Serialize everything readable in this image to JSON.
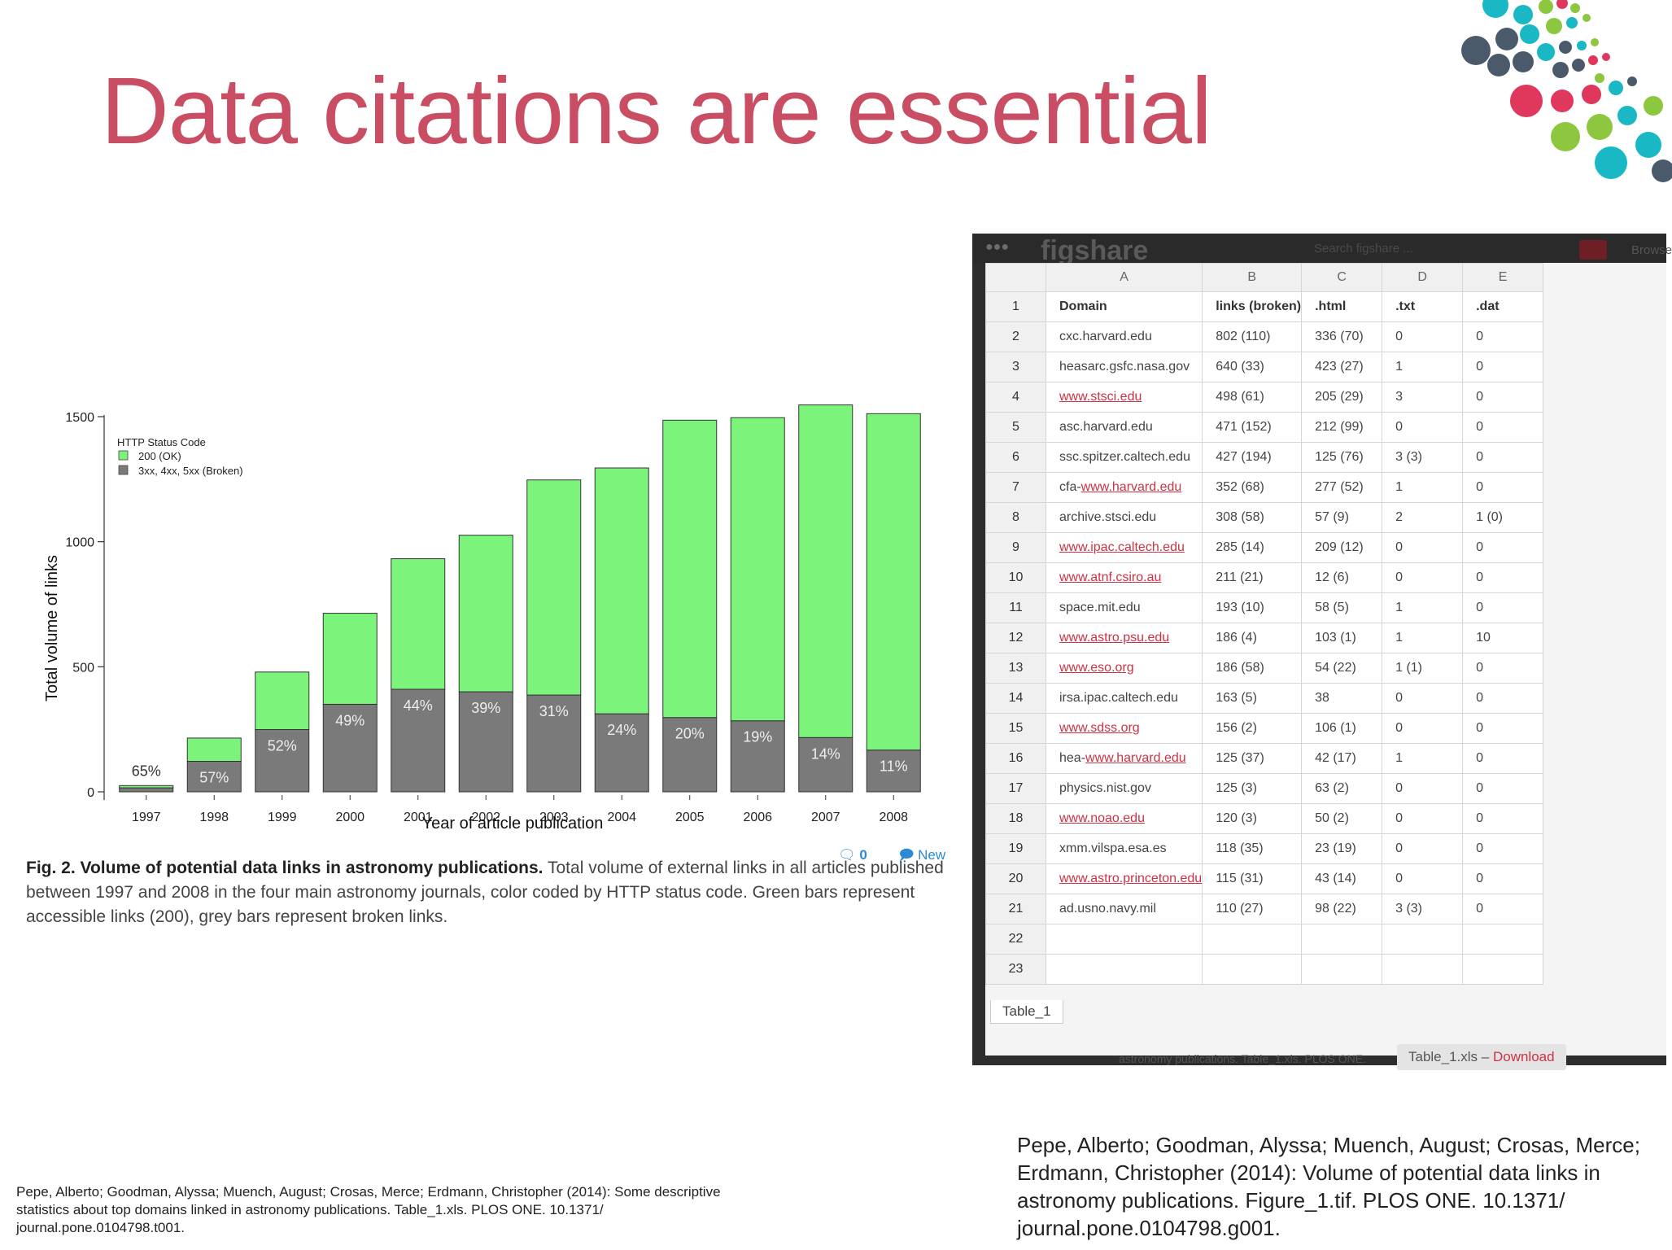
{
  "slide": {
    "title": "Data citations are essential"
  },
  "figure": {
    "links": {
      "comments": "0",
      "new": "New"
    },
    "caption_bold": "Fig. 2. Volume of potential data links in astronomy publications.",
    "caption_rest": "Total volume of external links in all articles published between 1997 and 2008 in the four main astronomy journals, color coded by HTTP status code. Green bars represent accessible links (200), grey bars represent broken links."
  },
  "chart_data": {
    "type": "bar",
    "stacked": true,
    "categories": [
      "1997",
      "1998",
      "1999",
      "2000",
      "2001",
      "2002",
      "2003",
      "2004",
      "2005",
      "2006",
      "2007",
      "2008"
    ],
    "series": [
      {
        "name": "200 (OK)",
        "color": "#7cf47c",
        "values": [
          9,
          93,
          230,
          364,
          522,
          626,
          860,
          983,
          1189,
          1212,
          1330,
          1345
        ]
      },
      {
        "name": "3xx, 4xx, 5xx (Broken)",
        "color": "#7a7a7a",
        "values": [
          16,
          122,
          249,
          350,
          410,
          400,
          387,
          312,
          297,
          284,
          217,
          167
        ]
      }
    ],
    "bar_labels": [
      "65%",
      "57%",
      "52%",
      "49%",
      "44%",
      "39%",
      "31%",
      "24%",
      "20%",
      "19%",
      "14%",
      "11%"
    ],
    "legend_title": "HTTP Status Code",
    "xlabel": "Year of article publication",
    "ylabel": "Total volume of links",
    "yticks": [
      "0",
      "500",
      "1000",
      "1500"
    ],
    "ylim": [
      0,
      1500
    ],
    "legend_position": "top-left",
    "grid": false
  },
  "spreadsheet": {
    "app_logo": "figshare",
    "search_text": "Search figshare ...",
    "browse_label": "Browse",
    "columns": [
      "A",
      "B",
      "C",
      "D",
      "E"
    ],
    "row_numbers": [
      "1",
      "2",
      "3",
      "4",
      "5",
      "6",
      "7",
      "8",
      "9",
      "10",
      "11",
      "12",
      "13",
      "14",
      "15",
      "16",
      "17",
      "18",
      "19",
      "20",
      "21",
      "22",
      "23"
    ],
    "header": [
      "Domain",
      "links (broken)",
      ".html",
      ".txt",
      ".dat"
    ],
    "rows": [
      {
        "prefix": "",
        "domain": "cxc.harvard.edu",
        "link": false,
        "links": "802 (110)",
        "html": "336 (70)",
        "txt": "0",
        "dat": "0"
      },
      {
        "prefix": "",
        "domain": "heasarc.gsfc.nasa.gov",
        "link": false,
        "links": "640 (33)",
        "html": "423 (27)",
        "txt": "1",
        "dat": "0"
      },
      {
        "prefix": "",
        "domain": "www.stsci.edu",
        "link": true,
        "links": "498 (61)",
        "html": "205 (29)",
        "txt": "3",
        "dat": "0"
      },
      {
        "prefix": "",
        "domain": "asc.harvard.edu",
        "link": false,
        "links": "471 (152)",
        "html": "212 (99)",
        "txt": "0",
        "dat": "0"
      },
      {
        "prefix": "",
        "domain": "ssc.spitzer.caltech.edu",
        "link": false,
        "links": "427 (194)",
        "html": "125 (76)",
        "txt": "3 (3)",
        "dat": "0"
      },
      {
        "prefix": "cfa-",
        "domain": "www.harvard.edu",
        "link": true,
        "links": "352 (68)",
        "html": "277 (52)",
        "txt": "1",
        "dat": "0"
      },
      {
        "prefix": "",
        "domain": "archive.stsci.edu",
        "link": false,
        "links": "308 (58)",
        "html": "57 (9)",
        "txt": "2",
        "dat": "1 (0)"
      },
      {
        "prefix": "",
        "domain": "www.ipac.caltech.edu",
        "link": true,
        "links": "285 (14)",
        "html": "209 (12)",
        "txt": "0",
        "dat": "0"
      },
      {
        "prefix": "",
        "domain": "www.atnf.csiro.au",
        "link": true,
        "links": "211 (21)",
        "html": "12 (6)",
        "txt": "0",
        "dat": "0"
      },
      {
        "prefix": "",
        "domain": "space.mit.edu",
        "link": false,
        "links": "193 (10)",
        "html": "58 (5)",
        "txt": "1",
        "dat": "0"
      },
      {
        "prefix": "",
        "domain": "www.astro.psu.edu",
        "link": true,
        "links": "186 (4)",
        "html": "103 (1)",
        "txt": "1",
        "dat": "10"
      },
      {
        "prefix": "",
        "domain": "www.eso.org",
        "link": true,
        "links": "186 (58)",
        "html": "54 (22)",
        "txt": "1 (1)",
        "dat": "0"
      },
      {
        "prefix": "",
        "domain": "irsa.ipac.caltech.edu",
        "link": false,
        "links": "163 (5)",
        "html": "38",
        "txt": "0",
        "dat": "0"
      },
      {
        "prefix": "",
        "domain": "www.sdss.org",
        "link": true,
        "links": "156 (2)",
        "html": "106 (1)",
        "txt": "0",
        "dat": "0"
      },
      {
        "prefix": "hea-",
        "domain": "www.harvard.edu",
        "link": true,
        "links": "125 (37)",
        "html": "42 (17)",
        "txt": "1",
        "dat": "0"
      },
      {
        "prefix": "",
        "domain": "physics.nist.gov",
        "link": false,
        "links": "125 (3)",
        "html": "63 (2)",
        "txt": "0",
        "dat": "0"
      },
      {
        "prefix": "",
        "domain": "www.noao.edu",
        "link": true,
        "links": "120 (3)",
        "html": "50 (2)",
        "txt": "0",
        "dat": "0"
      },
      {
        "prefix": "",
        "domain": "xmm.vilspa.esa.es",
        "link": false,
        "links": "118 (35)",
        "html": "23 (19)",
        "txt": "0",
        "dat": "0"
      },
      {
        "prefix": "",
        "domain": "www.astro.princeton.edu",
        "link": true,
        "links": "115 (31)",
        "html": "43 (14)",
        "txt": "0",
        "dat": "0"
      },
      {
        "prefix": "",
        "domain": "ad.usno.navy.mil",
        "link": false,
        "links": "110 (27)",
        "html": "98 (22)",
        "txt": "3 (3)",
        "dat": "0"
      }
    ],
    "sheet_tab": "Table_1",
    "file_name": "Table_1.xls",
    "download_separator": " – ",
    "download_label": "Download",
    "bottom_text": "astronomy publications. Table_1.xls. PLOS ONE."
  },
  "citations": {
    "left": "Pepe, Alberto; Goodman, Alyssa; Muench, August; Crosas, Merce; Erdmann, Christopher (2014): Some descriptive statistics about top domains linked in astronomy publications. Table_1.xls. PLOS ONE. 10.1371/ journal.pone.0104798.t001.",
    "right": "Pepe, Alberto; Goodman, Alyssa; Muench, August; Crosas, Merce; Erdmann, Christopher (2014): Volume of potential data links in astronomy publications. Figure_1.tif. PLOS ONE. 10.1371/ journal.pone.0104798.g001."
  },
  "decoration": {
    "dot_colors": [
      "#1ab8c4",
      "#8dc63f",
      "#e0385c",
      "#4a5a6a"
    ]
  }
}
